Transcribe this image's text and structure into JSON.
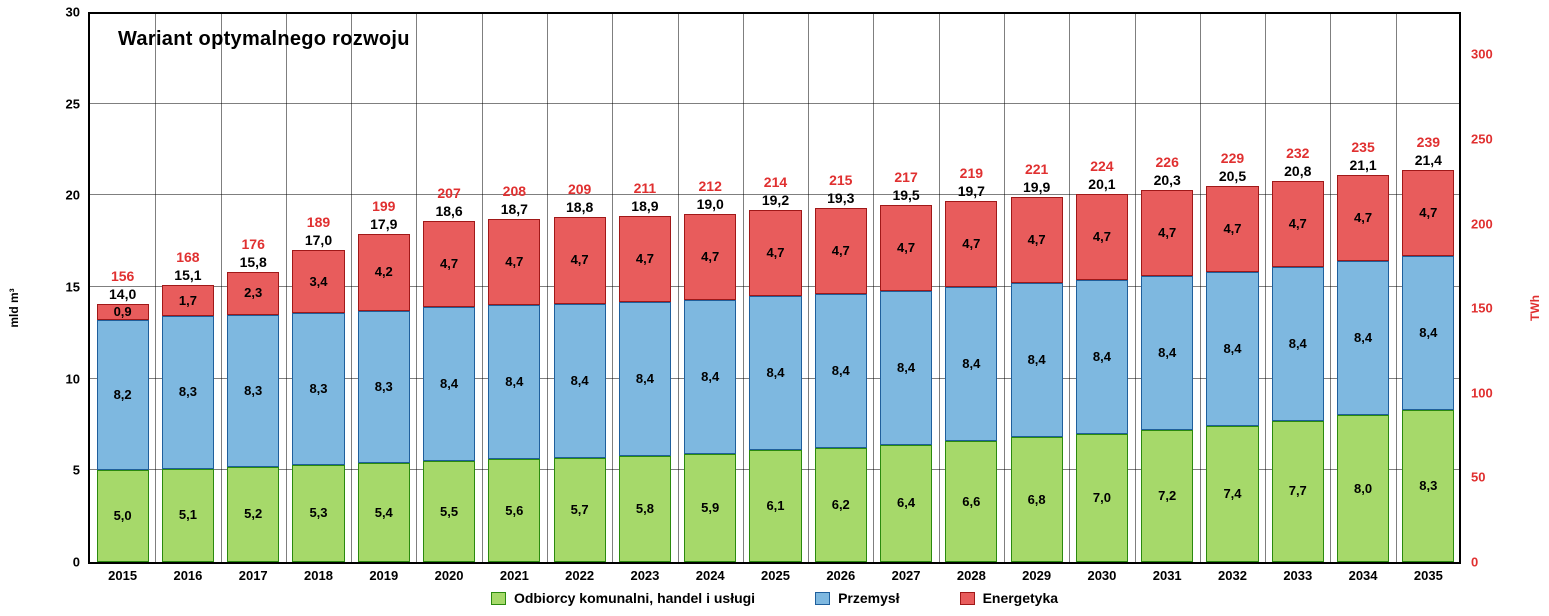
{
  "chart": {
    "type": "stacked-bar",
    "title": "Wariant optymalnego rozwoju",
    "title_fontsize": 20,
    "axis_left": {
      "label": "mld m³",
      "ylim": [
        0,
        30
      ],
      "ytick_step": 5,
      "ticks": [
        0,
        5,
        10,
        15,
        20,
        25,
        30
      ],
      "color": "#000000",
      "grid_color": "#808080"
    },
    "axis_right": {
      "label": "TWh",
      "ylim": [
        0,
        325
      ],
      "ticks": [
        0,
        50,
        100,
        150,
        200,
        250,
        300
      ],
      "color": "#e03030"
    },
    "categories": [
      "2015",
      "2016",
      "2017",
      "2018",
      "2019",
      "2020",
      "2021",
      "2022",
      "2023",
      "2024",
      "2025",
      "2026",
      "2027",
      "2028",
      "2029",
      "2030",
      "2031",
      "2032",
      "2033",
      "2034",
      "2035"
    ],
    "series": [
      {
        "name": "Odbiorcy komunalni, handel i usługi",
        "fill": "#a6d96a",
        "border": "#2b8a0e",
        "values": [
          5.0,
          5.1,
          5.2,
          5.3,
          5.4,
          5.5,
          5.6,
          5.7,
          5.8,
          5.9,
          6.1,
          6.2,
          6.4,
          6.6,
          6.8,
          7.0,
          7.2,
          7.4,
          7.7,
          8.0,
          8.3
        ],
        "labels": [
          "5,0",
          "5,1",
          "5,2",
          "5,3",
          "5,4",
          "5,5",
          "5,6",
          "5,7",
          "5,8",
          "5,9",
          "6,1",
          "6,2",
          "6,4",
          "6,6",
          "6,8",
          "7,0",
          "7,2",
          "7,4",
          "7,7",
          "8,0",
          "8,3"
        ]
      },
      {
        "name": "Przemysł",
        "fill": "#7eb8e0",
        "border": "#1f5f9c",
        "values": [
          8.2,
          8.3,
          8.3,
          8.3,
          8.3,
          8.4,
          8.4,
          8.4,
          8.4,
          8.4,
          8.4,
          8.4,
          8.4,
          8.4,
          8.4,
          8.4,
          8.4,
          8.4,
          8.4,
          8.4,
          8.4
        ],
        "labels": [
          "8,2",
          "8,3",
          "8,3",
          "8,3",
          "8,3",
          "8,4",
          "8,4",
          "8,4",
          "8,4",
          "8,4",
          "8,4",
          "8,4",
          "8,4",
          "8,4",
          "8,4",
          "8,4",
          "8,4",
          "8,4",
          "8,4",
          "8,4",
          "8,4"
        ]
      },
      {
        "name": "Energetyka",
        "fill": "#e85c5c",
        "border": "#a01818",
        "values": [
          0.9,
          1.7,
          2.3,
          3.4,
          4.2,
          4.7,
          4.7,
          4.7,
          4.7,
          4.7,
          4.7,
          4.7,
          4.7,
          4.7,
          4.7,
          4.7,
          4.7,
          4.7,
          4.7,
          4.7,
          4.7
        ],
        "labels": [
          "0,9",
          "1,7",
          "2,3",
          "3,4",
          "4,2",
          "4,7",
          "4,7",
          "4,7",
          "4,7",
          "4,7",
          "4,7",
          "4,7",
          "4,7",
          "4,7",
          "4,7",
          "4,7",
          "4,7",
          "4,7",
          "4,7",
          "4,7",
          "4,7"
        ]
      }
    ],
    "totals_black": [
      "14,0",
      "15,1",
      "15,8",
      "17,0",
      "17,9",
      "18,6",
      "18,7",
      "18,8",
      "18,9",
      "19,0",
      "19,2",
      "19,3",
      "19,5",
      "19,7",
      "19,9",
      "20,1",
      "20,3",
      "20,5",
      "20,8",
      "21,1",
      "21,4"
    ],
    "totals_red": [
      "156",
      "168",
      "176",
      "189",
      "199",
      "207",
      "208",
      "209",
      "211",
      "212",
      "214",
      "215",
      "217",
      "219",
      "221",
      "224",
      "226",
      "229",
      "232",
      "235",
      "239"
    ],
    "bar_width_ratio": 0.8,
    "background_color": "#ffffff",
    "label_fontsize": 13
  },
  "legend": {
    "items": [
      {
        "label": "Odbiorcy komunalni, handel i usługi"
      },
      {
        "label": "Przemysł"
      },
      {
        "label": "Energetyka"
      }
    ]
  }
}
